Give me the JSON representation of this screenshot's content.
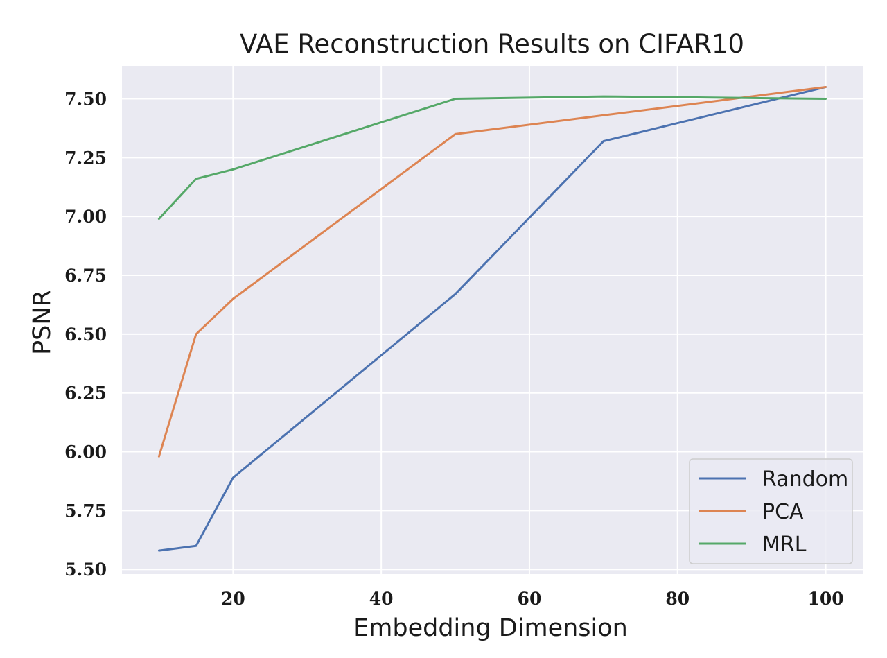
{
  "chart_data": {
    "type": "line",
    "title": "VAE Reconstruction Results on CIFAR10",
    "xlabel": "Embedding Dimension",
    "ylabel": "PSNR",
    "xlim": [
      5,
      105
    ],
    "ylim": [
      5.48,
      7.64
    ],
    "x_ticks": [
      20,
      40,
      60,
      80,
      100
    ],
    "y_ticks": [
      5.5,
      5.75,
      6.0,
      6.25,
      6.5,
      6.75,
      7.0,
      7.25,
      7.5
    ],
    "x_tick_labels": [
      "20",
      "40",
      "60",
      "80",
      "100"
    ],
    "y_tick_labels": [
      "5.50",
      "5.75",
      "6.00",
      "6.25",
      "6.50",
      "6.75",
      "7.00",
      "7.25",
      "7.50"
    ],
    "grid": true,
    "legend_position": "lower-right",
    "x": [
      10,
      15,
      20,
      50,
      70,
      100
    ],
    "series": [
      {
        "name": "Random",
        "color": "#4c72b0",
        "values": [
          5.58,
          5.6,
          5.89,
          6.67,
          7.32,
          7.55
        ]
      },
      {
        "name": "PCA",
        "color": "#dd8452",
        "values": [
          5.98,
          6.5,
          6.65,
          7.35,
          7.43,
          7.55
        ]
      },
      {
        "name": "MRL",
        "color": "#55a868",
        "values": [
          6.99,
          7.16,
          7.2,
          7.5,
          7.51,
          7.5
        ]
      }
    ]
  }
}
